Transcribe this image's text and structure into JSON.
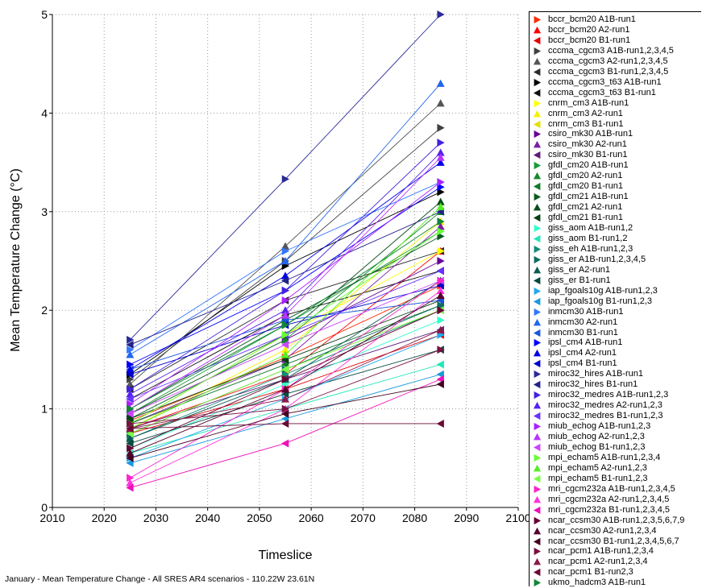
{
  "chart_data": {
    "type": "line",
    "title": "",
    "xlabel": "Timeslice",
    "ylabel": "Mean Temperature Change (°C)",
    "xlim": [
      2010,
      2100
    ],
    "ylim": [
      0,
      5
    ],
    "xticks": [
      "2010",
      "2020",
      "2030",
      "2040",
      "2050",
      "2060",
      "2070",
      "2080",
      "2090",
      "2100"
    ],
    "yticks": [
      "0",
      "1",
      "2",
      "3",
      "4",
      "5"
    ],
    "grid": true,
    "legend_position": "right",
    "x": [
      2025,
      2055,
      2085
    ],
    "series": [
      {
        "name": "bccr_bcm20 A1B-run1",
        "color": "#ff2a00",
        "marker": "tri-right",
        "values": [
          0.88,
          1.52,
          2.25
        ]
      },
      {
        "name": "bccr_bcm20 A2-run1",
        "color": "#ff0000",
        "marker": "tri-up",
        "values": [
          0.8,
          1.35,
          2.6
        ]
      },
      {
        "name": "bccr_bcm20 B1-run1",
        "color": "#e60000",
        "marker": "tri-left",
        "values": [
          0.75,
          1.2,
          1.75
        ]
      },
      {
        "name": "cccma_cgcm3 A1B-run1,2,3,4,5",
        "color": "#404040",
        "marker": "tri-right",
        "values": [
          1.3,
          2.5,
          3.85
        ]
      },
      {
        "name": "cccma_cgcm3 A2-run1,2,3,4,5",
        "color": "#555555",
        "marker": "tri-up",
        "values": [
          1.25,
          2.65,
          4.1
        ]
      },
      {
        "name": "cccma_cgcm3 B1-run1,2,3,4,5",
        "color": "#2b2b2b",
        "marker": "tri-left",
        "values": [
          1.2,
          2.1,
          2.6
        ]
      },
      {
        "name": "cccma_cgcm3_t63 A1B-run1",
        "color": "#000000",
        "marker": "tri-right",
        "values": [
          1.35,
          2.45,
          3.2
        ]
      },
      {
        "name": "cccma_cgcm3_t63 B1-run1",
        "color": "#111111",
        "marker": "tri-left",
        "values": [
          1.1,
          1.95,
          2.4
        ]
      },
      {
        "name": "cnrm_cm3 A1B-run1",
        "color": "#ffff00",
        "marker": "tri-right",
        "values": [
          0.85,
          1.75,
          2.6
        ]
      },
      {
        "name": "cnrm_cm3 A2-run1",
        "color": "#f2f200",
        "marker": "tri-up",
        "values": [
          0.8,
          1.6,
          2.9
        ]
      },
      {
        "name": "cnrm_cm3 B1-run1",
        "color": "#e0e000",
        "marker": "tri-left",
        "values": [
          0.75,
          1.4,
          2.0
        ]
      },
      {
        "name": "csiro_mk30 A1B-run1",
        "color": "#660099",
        "marker": "tri-right",
        "values": [
          0.9,
          1.7,
          2.5
        ]
      },
      {
        "name": "csiro_mk30 A2-run1",
        "color": "#7a1fa2",
        "marker": "tri-up",
        "values": [
          0.85,
          1.5,
          2.85
        ]
      },
      {
        "name": "csiro_mk30 B1-run1",
        "color": "#5c1a7a",
        "marker": "tri-left",
        "values": [
          0.8,
          1.3,
          1.8
        ]
      },
      {
        "name": "gfdl_cm20 A1B-run1",
        "color": "#1a9a3a",
        "marker": "tri-right",
        "values": [
          0.95,
          1.85,
          2.8
        ]
      },
      {
        "name": "gfdl_cm20 A2-run1",
        "color": "#168a30",
        "marker": "tri-up",
        "values": [
          0.9,
          1.7,
          3.0
        ]
      },
      {
        "name": "gfdl_cm20 B1-run1",
        "color": "#0f7a28",
        "marker": "tri-left",
        "values": [
          0.85,
          1.45,
          2.05
        ]
      },
      {
        "name": "gfdl_cm21 A1B-run1",
        "color": "#0a5a1e",
        "marker": "tri-right",
        "values": [
          1.0,
          1.9,
          2.75
        ]
      },
      {
        "name": "gfdl_cm21 A2-run1",
        "color": "#084d19",
        "marker": "tri-up",
        "values": [
          0.95,
          1.75,
          3.1
        ]
      },
      {
        "name": "gfdl_cm21 B1-run1",
        "color": "#063f14",
        "marker": "tri-left",
        "values": [
          0.9,
          1.5,
          2.1
        ]
      },
      {
        "name": "giss_aom A1B-run1,2",
        "color": "#33ffcc",
        "marker": "tri-right",
        "values": [
          0.6,
          1.25,
          1.9
        ]
      },
      {
        "name": "giss_aom B1-run1,2",
        "color": "#22e6b8",
        "marker": "tri-left",
        "values": [
          0.55,
          1.0,
          1.45
        ]
      },
      {
        "name": "giss_eh A1B-run1,2,3",
        "color": "#138c7a",
        "marker": "tri-right",
        "values": [
          0.7,
          1.35,
          2.0
        ]
      },
      {
        "name": "giss_er A1B-run1,2,3,4,5",
        "color": "#0e6e60",
        "marker": "tri-right",
        "values": [
          0.75,
          1.4,
          2.05
        ]
      },
      {
        "name": "giss_er A2-run1",
        "color": "#0b5a4f",
        "marker": "tri-up",
        "values": [
          0.7,
          1.3,
          2.3
        ]
      },
      {
        "name": "giss_er B1-run1",
        "color": "#084a40",
        "marker": "tri-left",
        "values": [
          0.65,
          1.15,
          1.6
        ]
      },
      {
        "name": "iap_fgoals10g A1B-run1,2,3",
        "color": "#22aaee",
        "marker": "tri-right",
        "values": [
          0.5,
          1.1,
          1.75
        ]
      },
      {
        "name": "iap_fgoals10g B1-run1,2,3",
        "color": "#1a99dd",
        "marker": "tri-left",
        "values": [
          0.45,
          0.9,
          1.35
        ]
      },
      {
        "name": "inmcm30 A1B-run1",
        "color": "#3377ff",
        "marker": "tri-right",
        "values": [
          1.6,
          2.6,
          3.3
        ]
      },
      {
        "name": "inmcm30 A2-run1",
        "color": "#2266ee",
        "marker": "tri-up",
        "values": [
          1.55,
          2.5,
          4.3
        ]
      },
      {
        "name": "inmcm30 B1-run1",
        "color": "#1a55dd",
        "marker": "tri-left",
        "values": [
          1.4,
          1.9,
          2.1
        ]
      },
      {
        "name": "ipsl_cm4 A1B-run1",
        "color": "#0000ff",
        "marker": "tri-right",
        "values": [
          1.45,
          2.2,
          3.25
        ]
      },
      {
        "name": "ipsl_cm4 A2-run1",
        "color": "#0000e6",
        "marker": "tri-up",
        "values": [
          1.4,
          2.35,
          3.5
        ]
      },
      {
        "name": "ipsl_cm4 B1-run1",
        "color": "#0000cc",
        "marker": "tri-left",
        "values": [
          1.35,
          1.85,
          2.25
        ]
      },
      {
        "name": "miroc32_hires A1B-run1",
        "color": "#2a2a99",
        "marker": "tri-right",
        "values": [
          1.7,
          3.33,
          5.0
        ]
      },
      {
        "name": "miroc32_hires B1-run1",
        "color": "#222288",
        "marker": "tri-left",
        "values": [
          1.65,
          2.3,
          3.0
        ]
      },
      {
        "name": "miroc32_medres A1B-run1,2,3",
        "color": "#4422dd",
        "marker": "tri-right",
        "values": [
          1.2,
          2.2,
          3.7
        ]
      },
      {
        "name": "miroc32_medres A2-run1,2,3",
        "color": "#5522ee",
        "marker": "tri-up",
        "values": [
          1.15,
          2.0,
          3.6
        ]
      },
      {
        "name": "miroc32_medres B1-run1,2,3",
        "color": "#6633ff",
        "marker": "tri-left",
        "values": [
          1.1,
          1.75,
          2.4
        ]
      },
      {
        "name": "miub_echog A1B-run1,2,3",
        "color": "#aa22ff",
        "marker": "tri-right",
        "values": [
          1.05,
          2.1,
          3.3
        ]
      },
      {
        "name": "miub_echog A2-run1,2,3",
        "color": "#bb33ff",
        "marker": "tri-up",
        "values": [
          1.0,
          1.95,
          3.55
        ]
      },
      {
        "name": "miub_echog B1-run1,2,3",
        "color": "#cc44ff",
        "marker": "tri-left",
        "values": [
          0.95,
          1.65,
          2.3
        ]
      },
      {
        "name": "mpi_echam5 A1B-run1,2,3,4",
        "color": "#66ff33",
        "marker": "tri-right",
        "values": [
          0.85,
          1.75,
          2.8
        ]
      },
      {
        "name": "mpi_echam5 A2-run1,2,3",
        "color": "#55ee22",
        "marker": "tri-up",
        "values": [
          0.8,
          1.55,
          3.05
        ]
      },
      {
        "name": "mpi_echam5 B1-run1,2,3",
        "color": "#77ff44",
        "marker": "tri-left",
        "values": [
          0.75,
          1.4,
          2.0
        ]
      },
      {
        "name": "mri_cgcm232a A1B-run1,2,3,4,5",
        "color": "#ff22cc",
        "marker": "tri-right",
        "values": [
          0.3,
          1.2,
          2.3
        ]
      },
      {
        "name": "mri_cgcm232a A2-run1,2,3,4,5",
        "color": "#ff33dd",
        "marker": "tri-up",
        "values": [
          0.25,
          1.0,
          2.2
        ]
      },
      {
        "name": "mri_cgcm232a B1-run1,2,3,4,5",
        "color": "#ee11bb",
        "marker": "tri-left",
        "values": [
          0.2,
          0.65,
          1.3
        ]
      },
      {
        "name": "ncar_ccsm30 A1B-run1,2,3,5,6,7,9",
        "color": "#660033",
        "marker": "tri-right",
        "values": [
          0.6,
          1.3,
          2.0
        ]
      },
      {
        "name": "ncar_ccsm30 A2-run1,2,3,4",
        "color": "#55002b",
        "marker": "tri-up",
        "values": [
          0.55,
          1.2,
          2.15
        ]
      },
      {
        "name": "ncar_ccsm30 B1-run1,2,3,4,5,6,7",
        "color": "#440022",
        "marker": "tri-left",
        "values": [
          0.5,
          0.95,
          1.25
        ]
      },
      {
        "name": "ncar_pcm1 A1B-run1,2,3,4",
        "color": "#7a1040",
        "marker": "tri-right",
        "values": [
          0.85,
          1.0,
          1.6
        ]
      },
      {
        "name": "ncar_pcm1 A2-run1,2,3,4",
        "color": "#8a1a4a",
        "marker": "tri-up",
        "values": [
          0.8,
          1.1,
          1.8
        ]
      },
      {
        "name": "ncar_pcm1 B1-run2,3",
        "color": "#6a0a36",
        "marker": "tri-left",
        "values": [
          0.8,
          0.85,
          0.85
        ]
      },
      {
        "name": "ukmo_hadcm3 A1B-run1",
        "color": "#118833",
        "marker": "tri-right",
        "values": [
          1.0,
          1.85,
          2.9
        ]
      }
    ],
    "footnote": "January - Mean Temperature Change - All SRES AR4 scenarios - 110.22W 23.61N"
  }
}
